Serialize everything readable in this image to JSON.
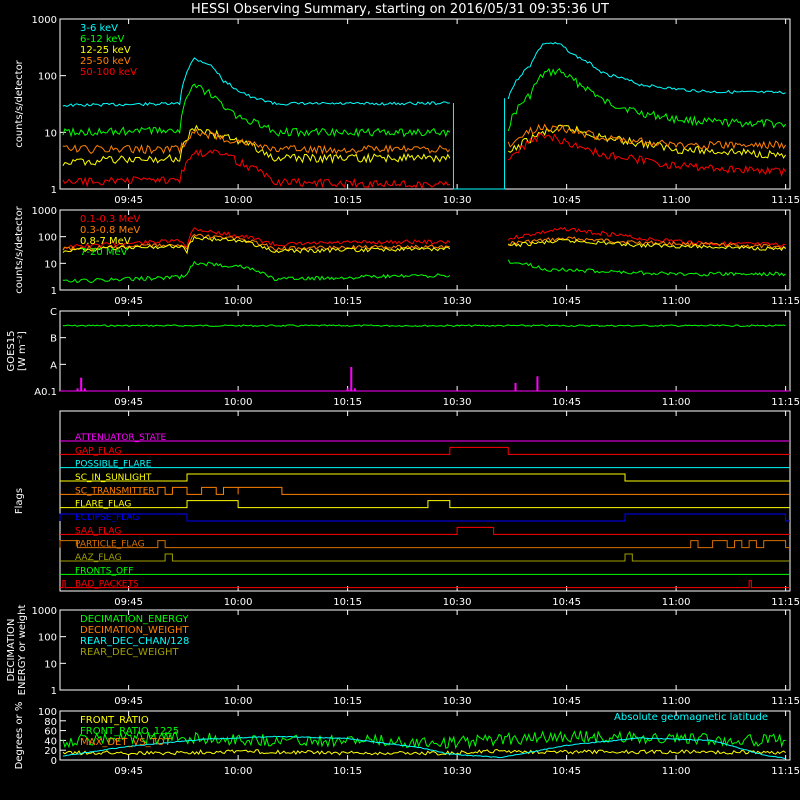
{
  "title": "HESSI Observing Summary, starting on 2016/05/31 09:35:36 UT",
  "time_ticks": [
    "09:45",
    "10:00",
    "10:15",
    "10:30",
    "10:45",
    "11:00",
    "11:15"
  ],
  "colors": {
    "red": "#ff0000",
    "orange": "#ff8000",
    "yellow": "#ffff00",
    "green": "#00ff00",
    "cyan": "#00ffff",
    "magenta": "#ff00ff",
    "blue": "#0000ff",
    "olive": "#a0a000",
    "brown": "#d87000"
  },
  "chart_data": [
    {
      "type": "line",
      "name": "hxr",
      "ylabel": "counts/s/detector",
      "yscale": "log",
      "ylim": [
        1,
        1000
      ],
      "y_ticks": [
        "1",
        "10",
        "100",
        "1000"
      ],
      "time_range": [
        "09:35:36",
        "11:15:36"
      ],
      "gap": [
        "10:29:30",
        "10:36:30"
      ],
      "legend": [
        "3-6 keV",
        "6-12 keV",
        "12-25 keV",
        "25-50 keV",
        "50-100 keV"
      ],
      "series": [
        {
          "color": "cyan",
          "points": [
            [
              "09:36",
              30
            ],
            [
              "09:52",
              32
            ],
            [
              "09:53",
              120
            ],
            [
              "09:54",
              200
            ],
            [
              "09:56",
              160
            ],
            [
              "09:58",
              80
            ],
            [
              "10:00",
              55
            ],
            [
              "10:02",
              40
            ],
            [
              "10:04",
              36
            ],
            [
              "10:05",
              32
            ],
            [
              "10:20",
              32
            ],
            [
              "10:29",
              33
            ],
            [
              "10:37",
              40
            ],
            [
              "10:40",
              150
            ],
            [
              "10:42",
              380
            ],
            [
              "10:44",
              360
            ],
            [
              "10:46",
              230
            ],
            [
              "10:50",
              110
            ],
            [
              "10:55",
              70
            ],
            [
              "11:00",
              58
            ],
            [
              "11:05",
              52
            ],
            [
              "11:15",
              50
            ]
          ]
        },
        {
          "color": "green",
          "points": [
            [
              "09:36",
              10
            ],
            [
              "09:52",
              11
            ],
            [
              "09:53",
              40
            ],
            [
              "09:54",
              65
            ],
            [
              "09:56",
              50
            ],
            [
              "09:58",
              28
            ],
            [
              "10:00",
              18
            ],
            [
              "10:03",
              14
            ],
            [
              "10:05",
              10
            ],
            [
              "10:20",
              10
            ],
            [
              "10:29",
              10
            ],
            [
              "10:37",
              12
            ],
            [
              "10:40",
              45
            ],
            [
              "10:42",
              110
            ],
            [
              "10:44",
              120
            ],
            [
              "10:46",
              80
            ],
            [
              "10:50",
              35
            ],
            [
              "10:55",
              22
            ],
            [
              "11:00",
              17
            ],
            [
              "11:05",
              15
            ],
            [
              "11:15",
              14
            ]
          ]
        },
        {
          "color": "yellow",
          "points": [
            [
              "09:36",
              3
            ],
            [
              "09:52",
              3.5
            ],
            [
              "09:54",
              12
            ],
            [
              "09:56",
              10
            ],
            [
              "10:00",
              7
            ],
            [
              "10:05",
              3.5
            ],
            [
              "10:20",
              3.5
            ],
            [
              "10:29",
              3.5
            ],
            [
              "10:37",
              4
            ],
            [
              "10:42",
              10
            ],
            [
              "10:45",
              12
            ],
            [
              "10:50",
              8
            ],
            [
              "11:00",
              5
            ],
            [
              "11:15",
              4
            ]
          ]
        },
        {
          "color": "orange",
          "points": [
            [
              "09:36",
              5
            ],
            [
              "09:52",
              5
            ],
            [
              "09:54",
              10
            ],
            [
              "10:00",
              7
            ],
            [
              "10:05",
              5
            ],
            [
              "10:20",
              5
            ],
            [
              "10:29",
              5
            ],
            [
              "10:37",
              6
            ],
            [
              "10:42",
              13
            ],
            [
              "10:45",
              11
            ],
            [
              "10:50",
              8
            ],
            [
              "11:00",
              6
            ],
            [
              "11:15",
              6
            ]
          ]
        },
        {
          "color": "red",
          "points": [
            [
              "09:36",
              1.3
            ],
            [
              "09:52",
              1.5
            ],
            [
              "09:54",
              4
            ],
            [
              "09:57",
              5
            ],
            [
              "10:00",
              3
            ],
            [
              "10:05",
              1.3
            ],
            [
              "10:29",
              1.2
            ],
            [
              "10:37",
              3
            ],
            [
              "10:42",
              9
            ],
            [
              "10:46",
              6
            ],
            [
              "10:50",
              4
            ],
            [
              "11:00",
              2.5
            ],
            [
              "11:15",
              2
            ]
          ]
        }
      ]
    },
    {
      "type": "line",
      "name": "gamma",
      "ylabel": "counts/s/detector",
      "yscale": "log",
      "ylim": [
        1,
        1000
      ],
      "y_ticks": [
        "1",
        "10",
        "100",
        "1000"
      ],
      "time_range": [
        "09:35:36",
        "11:15:36"
      ],
      "gap": [
        "10:29:30",
        "10:36:30"
      ],
      "legend": [
        "0.1-0.3 MeV",
        "0.3-0.8 MeV",
        "0.8-7 MeV",
        "7-20 MeV"
      ],
      "series": [
        {
          "color": "red",
          "points": [
            [
              "09:36",
              40
            ],
            [
              "09:52",
              70
            ],
            [
              "09:53",
              45
            ],
            [
              "09:54",
              200
            ],
            [
              "09:57",
              140
            ],
            [
              "10:00",
              110
            ],
            [
              "10:05",
              50
            ],
            [
              "10:15",
              60
            ],
            [
              "10:25",
              65
            ],
            [
              "10:29",
              60
            ],
            [
              "10:37",
              80
            ],
            [
              "10:42",
              150
            ],
            [
              "10:45",
              200
            ],
            [
              "10:48",
              150
            ],
            [
              "10:55",
              85
            ],
            [
              "11:05",
              55
            ],
            [
              "11:15",
              50
            ]
          ]
        },
        {
          "color": "orange",
          "points": [
            [
              "09:36",
              35
            ],
            [
              "09:52",
              50
            ],
            [
              "09:53",
              32
            ],
            [
              "09:54",
              110
            ],
            [
              "10:00",
              85
            ],
            [
              "10:05",
              35
            ],
            [
              "10:15",
              40
            ],
            [
              "10:29",
              42
            ],
            [
              "10:37",
              55
            ],
            [
              "10:45",
              85
            ],
            [
              "10:55",
              60
            ],
            [
              "11:15",
              40
            ]
          ]
        },
        {
          "color": "yellow",
          "points": [
            [
              "09:36",
              30
            ],
            [
              "09:52",
              45
            ],
            [
              "09:53",
              28
            ],
            [
              "09:54",
              90
            ],
            [
              "10:00",
              70
            ],
            [
              "10:05",
              28
            ],
            [
              "10:15",
              32
            ],
            [
              "10:29",
              35
            ],
            [
              "10:37",
              45
            ],
            [
              "10:45",
              70
            ],
            [
              "10:55",
              48
            ],
            [
              "11:15",
              35
            ]
          ]
        },
        {
          "color": "green",
          "points": [
            [
              "09:36",
              2
            ],
            [
              "09:52",
              3
            ],
            [
              "09:53",
              4
            ],
            [
              "09:54",
              10
            ],
            [
              "10:00",
              8
            ],
            [
              "10:05",
              2.5
            ],
            [
              "10:15",
              3
            ],
            [
              "10:29",
              3.5
            ],
            [
              "10:37",
              12
            ],
            [
              "10:42",
              6
            ],
            [
              "10:50",
              5
            ],
            [
              "11:00",
              4
            ],
            [
              "11:15",
              4
            ]
          ]
        }
      ]
    },
    {
      "type": "line",
      "name": "goes",
      "ylabel": "GOES15",
      "ylabel2": "[W m⁻²]",
      "y_ticks": [
        "A0.1",
        "A",
        "B",
        "C"
      ],
      "time_range": [
        "09:35:36",
        "11:15:36"
      ],
      "series": [
        {
          "color": "green",
          "level": 2.45
        },
        {
          "color": "magenta",
          "points": [
            [
              "09:38",
              0.1
            ],
            [
              "09:38.5",
              0.5
            ],
            [
              "09:39",
              0.1
            ],
            [
              "10:15",
              0.1
            ],
            [
              "10:15.5",
              0.9
            ],
            [
              "10:16",
              0.1
            ],
            [
              "10:38",
              0.3
            ],
            [
              "10:41",
              0.55
            ]
          ]
        }
      ]
    },
    {
      "type": "line",
      "name": "flags",
      "ylabel": "Flags",
      "time_range": [
        "09:35:36",
        "11:15:36"
      ],
      "flags": [
        {
          "label": "ATTENUATOR_STATE",
          "color": "magenta",
          "on": []
        },
        {
          "label": "GAP_FLAG",
          "color": "red",
          "on": [
            [
              "10:29",
              "10:37"
            ]
          ]
        },
        {
          "label": "POSSIBLE_FLARE",
          "color": "cyan",
          "on": []
        },
        {
          "label": "SC_IN_SUNLIGHT",
          "color": "yellow",
          "on": [
            [
              "09:53",
              "10:53"
            ]
          ]
        },
        {
          "label": "SC_TRANSMITTER",
          "color": "orange",
          "on": [
            [
              "09:49",
              "09:50"
            ],
            [
              "09:51",
              "09:53"
            ],
            [
              "09:55",
              "09:57"
            ],
            [
              "09:58",
              "10:00"
            ],
            [
              "10:00",
              "10:06"
            ]
          ]
        },
        {
          "label": "FLARE_FLAG",
          "color": "yellow",
          "on": [
            [
              "09:53",
              "10:00"
            ],
            [
              "10:26",
              "10:29"
            ]
          ]
        },
        {
          "label": "ECLIPSE_FLAG",
          "color": "blue",
          "on": [
            [
              "09:35",
              "09:53"
            ],
            [
              "10:53",
              "11:15"
            ]
          ]
        },
        {
          "label": "SAA_FLAG",
          "color": "red",
          "on": [
            [
              "10:30",
              "10:35"
            ]
          ]
        },
        {
          "label": "PARTICLE_FLAG",
          "color": "brown",
          "on": [
            [
              "09:35",
              "09:38"
            ],
            [
              "09:49",
              "09:50"
            ],
            [
              "11:02",
              "11:03"
            ],
            [
              "11:05",
              "11:07"
            ],
            [
              "11:08",
              "11:09"
            ],
            [
              "11:10",
              "11:11"
            ],
            [
              "11:12",
              "11:15"
            ]
          ]
        },
        {
          "label": "AAZ_FLAG",
          "color": "olive",
          "on": [
            [
              "09:50",
              "09:51"
            ],
            [
              "10:53",
              "10:54"
            ]
          ]
        },
        {
          "label": "FRONTS_OFF",
          "color": "green",
          "on": []
        },
        {
          "label": "BAD_PACKETS",
          "color": "red",
          "on": [
            [
              "09:36",
              "09:36.3"
            ],
            [
              "11:10",
              "11:10.3"
            ]
          ]
        }
      ]
    },
    {
      "type": "line",
      "name": "decimation",
      "ylabel": "DECIMATION",
      "ylabel2": "ENERGY or weight",
      "yscale": "log",
      "ylim": [
        1,
        1000
      ],
      "y_ticks": [
        "1",
        "10",
        "100",
        "1000"
      ],
      "time_range": [
        "09:35:36",
        "11:15:36"
      ],
      "legend": [
        "DECIMATION_ENERGY",
        "DECIMATION_WEIGHT",
        "REAR_DEC_CHAN/128",
        "REAR_DEC_WEIGHT"
      ],
      "legend_colors": [
        "green",
        "orange",
        "cyan",
        "olive"
      ]
    },
    {
      "type": "line",
      "name": "ratios",
      "ylabel": "Degrees or %",
      "ylim": [
        0,
        100
      ],
      "y_ticks": [
        "0",
        "20",
        "40",
        "60",
        "80",
        "100"
      ],
      "time_range": [
        "09:35:36",
        "11:15:36"
      ],
      "legend": [
        "FRONT_RATIO",
        "FRONT_RATIO_1225",
        "MAX_DET_VS_TOT"
      ],
      "legend_colors": [
        "yellow",
        "green",
        "orange"
      ],
      "annotation": "Absolute geomagnetic latitude",
      "series": [
        {
          "color": "green",
          "points": [
            [
              "09:36",
              38
            ],
            [
              "09:45",
              45
            ],
            [
              "09:55",
              45
            ],
            [
              "10:05",
              40
            ],
            [
              "10:15",
              40
            ],
            [
              "10:25",
              37
            ],
            [
              "10:29",
              35
            ],
            [
              "10:36",
              42
            ],
            [
              "10:45",
              48
            ],
            [
              "10:55",
              45
            ],
            [
              "11:05",
              42
            ],
            [
              "11:15",
              40
            ]
          ]
        },
        {
          "color": "yellow",
          "points": [
            [
              "09:36",
              15
            ],
            [
              "09:50",
              14
            ],
            [
              "10:00",
              18
            ],
            [
              "10:15",
              14
            ],
            [
              "10:29",
              14
            ],
            [
              "10:36",
              18
            ],
            [
              "10:45",
              16
            ],
            [
              "11:00",
              17
            ],
            [
              "11:15",
              15
            ]
          ]
        },
        {
          "color": "cyan",
          "points": [
            [
              "09:36",
              8
            ],
            [
              "09:45",
              28
            ],
            [
              "09:55",
              42
            ],
            [
              "10:05",
              48
            ],
            [
              "10:15",
              44
            ],
            [
              "10:25",
              25
            ],
            [
              "10:29",
              12
            ],
            [
              "10:36",
              5
            ],
            [
              "10:45",
              30
            ],
            [
              "10:55",
              45
            ],
            [
              "11:05",
              40
            ],
            [
              "11:12",
              10
            ],
            [
              "11:15",
              3
            ]
          ]
        }
      ]
    }
  ]
}
